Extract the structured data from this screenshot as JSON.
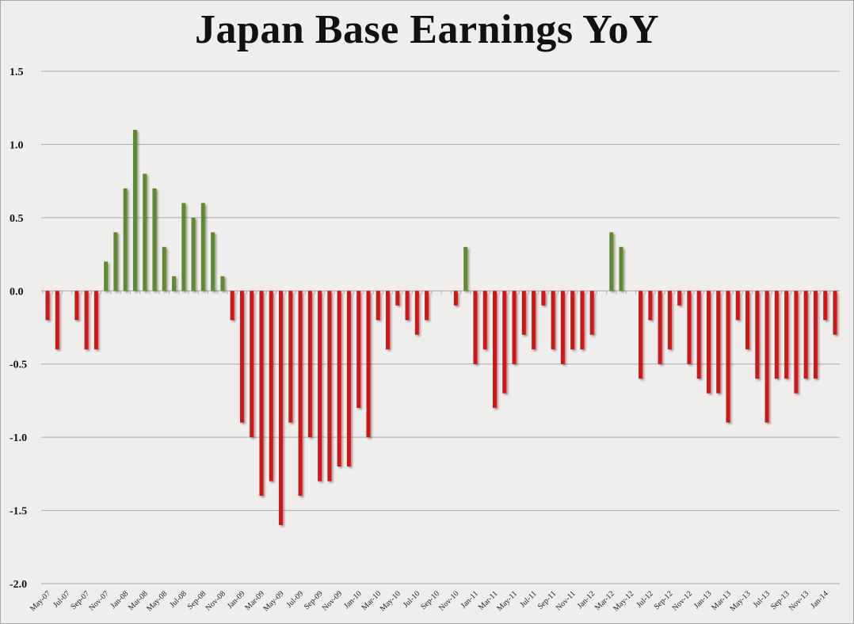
{
  "chart_data": {
    "type": "bar",
    "title": "Japan Base Earnings YoY",
    "xlabel": "",
    "ylabel": "",
    "ylim": [
      -2.0,
      1.5
    ],
    "yticks": [
      "1.5",
      "1.0",
      "0.5",
      "0.0",
      "-0.5",
      "-1.0",
      "-1.5",
      "-2.0"
    ],
    "ytick_values": [
      1.5,
      1.0,
      0.5,
      0.0,
      -0.5,
      -1.0,
      -1.5,
      -2.0
    ],
    "grid": true,
    "legend": "none",
    "colors": {
      "positive": "#5e8a30",
      "negative": "#d01515"
    },
    "categories": [
      "May-07",
      "Jun-07",
      "Jul-07",
      "Aug-07",
      "Sep-07",
      "Oct-07",
      "Nov-07",
      "Dec-07",
      "Jan-08",
      "Feb-08",
      "Mar-08",
      "Apr-08",
      "May-08",
      "Jun-08",
      "Jul-08",
      "Aug-08",
      "Sep-08",
      "Oct-08",
      "Nov-08",
      "Dec-08",
      "Jan-09",
      "Feb-09",
      "Mar-09",
      "Apr-09",
      "May-09",
      "Jun-09",
      "Jul-09",
      "Aug-09",
      "Sep-09",
      "Oct-09",
      "Nov-09",
      "Dec-09",
      "Jan-10",
      "Feb-10",
      "Mar-10",
      "Apr-10",
      "May-10",
      "Jun-10",
      "Jul-10",
      "Aug-10",
      "Sep-10",
      "Oct-10",
      "Nov-10",
      "Dec-10",
      "Jan-11",
      "Feb-11",
      "Mar-11",
      "Apr-11",
      "May-11",
      "Jun-11",
      "Jul-11",
      "Aug-11",
      "Sep-11",
      "Oct-11",
      "Nov-11",
      "Dec-11",
      "Jan-12",
      "Feb-12",
      "Mar-12",
      "Apr-12",
      "May-12",
      "Jun-12",
      "Jul-12",
      "Aug-12",
      "Sep-12",
      "Oct-12",
      "Nov-12",
      "Dec-12",
      "Jan-13",
      "Feb-13",
      "Mar-13",
      "Apr-13",
      "May-13",
      "Jun-13",
      "Jul-13",
      "Aug-13",
      "Sep-13",
      "Oct-13",
      "Nov-13",
      "Dec-13",
      "Jan-14",
      "Feb-14"
    ],
    "values": [
      -0.2,
      -0.4,
      0,
      -0.2,
      -0.4,
      -0.4,
      0.2,
      0.4,
      0.7,
      1.1,
      0.8,
      0.7,
      0.3,
      0.1,
      0.6,
      0.5,
      0.6,
      0.4,
      0.1,
      -0.2,
      -0.9,
      -1.0,
      -1.4,
      -1.3,
      -1.6,
      -0.9,
      -1.4,
      -1.0,
      -1.3,
      -1.3,
      -1.2,
      -1.2,
      -0.8,
      -1.0,
      -0.2,
      -0.4,
      -0.1,
      -0.2,
      -0.3,
      -0.2,
      0,
      0,
      -0.1,
      0.3,
      -0.5,
      -0.4,
      -0.8,
      -0.7,
      -0.5,
      -0.3,
      -0.4,
      -0.1,
      -0.4,
      -0.5,
      -0.4,
      -0.4,
      -0.3,
      0,
      0.4,
      0.3,
      0,
      -0.6,
      -0.2,
      -0.5,
      -0.4,
      -0.1,
      -0.5,
      -0.6,
      -0.7,
      -0.7,
      -0.9,
      -0.2,
      -0.4,
      -0.6,
      -0.9,
      -0.6,
      -0.6,
      -0.7,
      -0.6,
      -0.6,
      -0.2,
      -0.3
    ],
    "xtick_labels": [
      "May-07",
      "Jul-07",
      "Sep-07",
      "Nov-07",
      "Jan-08",
      "Mar-08",
      "May-08",
      "Jul-08",
      "Sep-08",
      "Nov-08",
      "Jan-09",
      "Mar-09",
      "May-09",
      "Jul-09",
      "Sep-09",
      "Nov-09",
      "Jan-10",
      "Mar-10",
      "May-10",
      "Jul-10",
      "Sep-10",
      "Nov-10",
      "Jan-11",
      "Mar-11",
      "May-11",
      "Jul-11",
      "Sep-11",
      "Nov-11",
      "Jan-12",
      "Mar-12",
      "May-12",
      "Jul-12",
      "Sep-12",
      "Nov-12",
      "Jan-13",
      "Mar-13",
      "May-13",
      "Jul-13",
      "Sep-13",
      "Nov-13",
      "Jan-14"
    ]
  }
}
